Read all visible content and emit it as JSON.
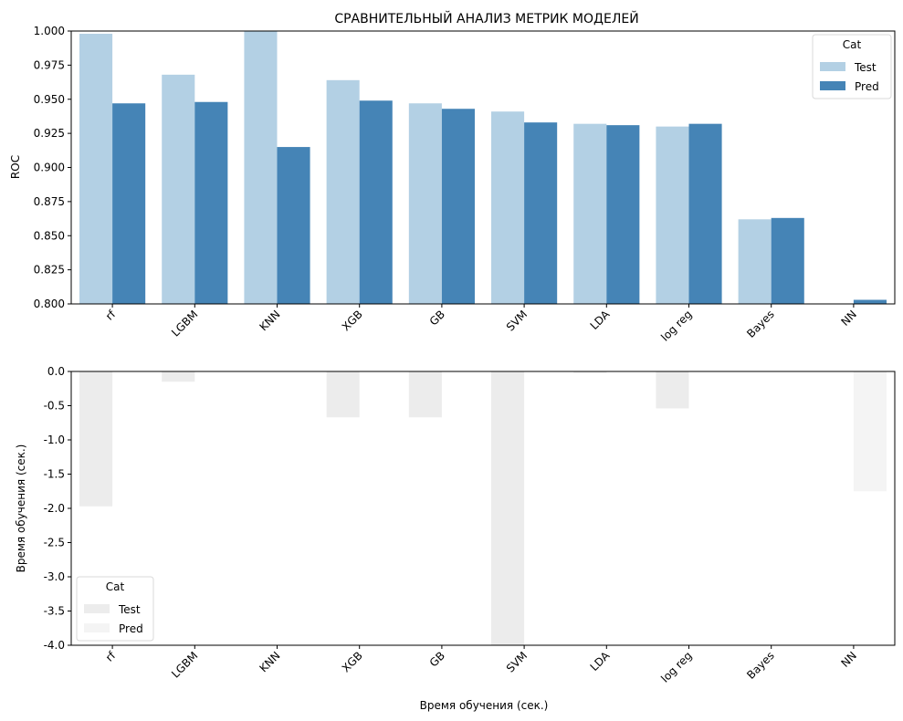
{
  "chart_data": [
    {
      "type": "bar",
      "title": "СРАВНИТЕЛЬНЫЙ АНАЛИЗ МЕТРИК МОДЕЛЕЙ",
      "xlabel": "",
      "ylabel": "ROC",
      "ylim": [
        0.8,
        1.0
      ],
      "yticks": [
        "0.800",
        "0.825",
        "0.850",
        "0.875",
        "0.900",
        "0.925",
        "0.950",
        "0.975",
        "1.000"
      ],
      "categories": [
        "rf",
        "LGBM",
        "KNN",
        "XGB",
        "GB",
        "SVM",
        "LDA",
        "log reg",
        "Bayes",
        "NN"
      ],
      "series": [
        {
          "name": "Test",
          "color": "#b3d0e4",
          "values": [
            0.998,
            0.968,
            1.0,
            0.964,
            0.947,
            0.941,
            0.932,
            0.93,
            0.862,
            0.798
          ]
        },
        {
          "name": "Pred",
          "color": "#4584b6",
          "values": [
            0.947,
            0.948,
            0.915,
            0.949,
            0.943,
            0.933,
            0.931,
            0.932,
            0.863,
            0.803
          ]
        }
      ],
      "legend": {
        "title": "Cat",
        "placement": "top-right"
      },
      "grid": false
    },
    {
      "type": "bar",
      "title": "",
      "xlabel": "Время обучения (сек.)",
      "ylabel": "Время обучения (сек.)",
      "ylim": [
        -4.0,
        0.0
      ],
      "yticks": [
        "-4.0",
        "-3.5",
        "-3.0",
        "-2.5",
        "-2.0",
        "-1.5",
        "-1.0",
        "-0.5",
        "0.0"
      ],
      "categories": [
        "rf",
        "LGBM",
        "KNN",
        "XGB",
        "GB",
        "SVM",
        "LDA",
        "log reg",
        "Bayes",
        "NN"
      ],
      "series": [
        {
          "name": "Test",
          "color": "#ececec",
          "values": [
            -1.97,
            -0.15,
            0.0,
            -0.67,
            -0.67,
            -4.0,
            -0.02,
            -0.54,
            0.0,
            0.0
          ]
        },
        {
          "name": "Pred",
          "color": "#f4f4f4",
          "values": [
            0.0,
            0.0,
            0.0,
            0.0,
            0.0,
            0.0,
            0.0,
            0.0,
            0.0,
            -1.75
          ]
        }
      ],
      "legend": {
        "title": "Cat",
        "placement": "bottom-left"
      },
      "grid": false
    }
  ]
}
